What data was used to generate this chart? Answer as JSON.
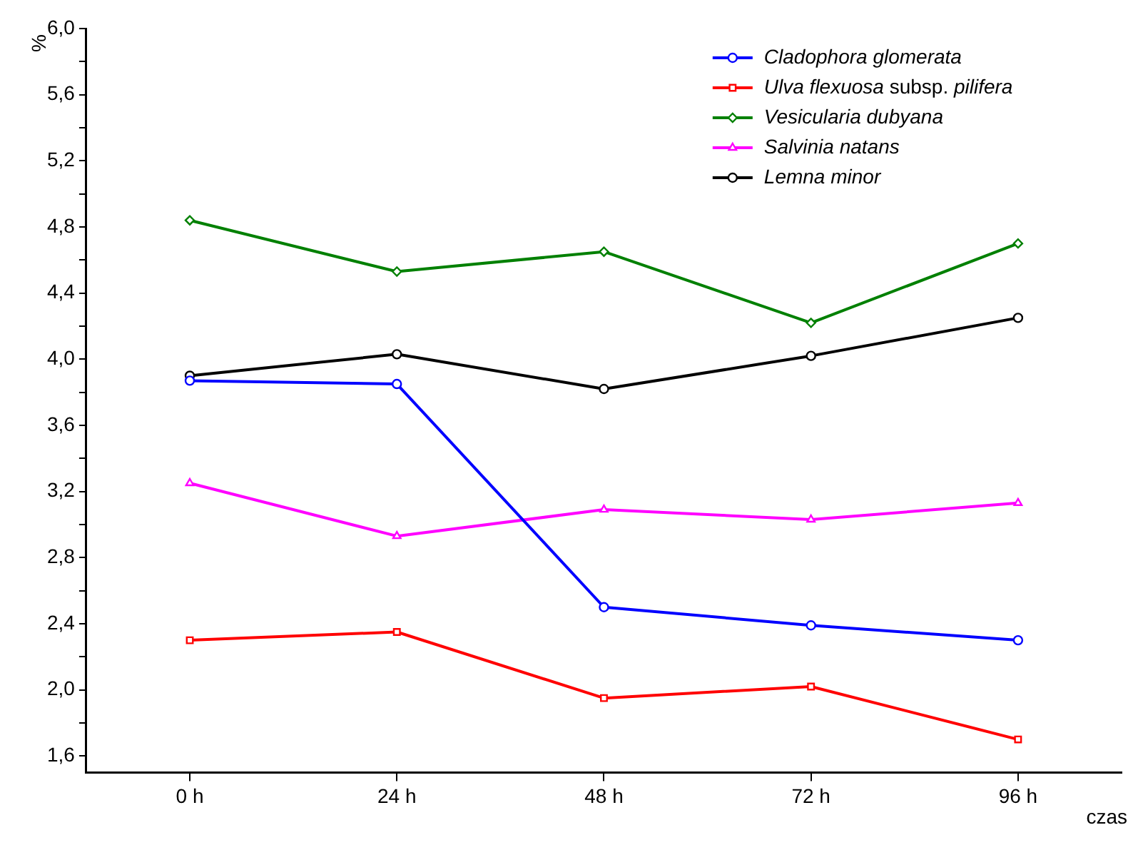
{
  "chart_data": {
    "type": "line",
    "ylabel": "%",
    "xlabel": "czas",
    "categories": [
      "0 h",
      "24 h",
      "48 h",
      "72 h",
      "96 h"
    ],
    "ylim": [
      1.5,
      6.0
    ],
    "yticks": [
      {
        "value": 1.6,
        "label": "1,6"
      },
      {
        "value": 1.8,
        "label": null
      },
      {
        "value": 2.0,
        "label": "2,0"
      },
      {
        "value": 2.2,
        "label": null
      },
      {
        "value": 2.4,
        "label": "2,4"
      },
      {
        "value": 2.6,
        "label": null
      },
      {
        "value": 2.8,
        "label": "2,8"
      },
      {
        "value": 3.0,
        "label": null
      },
      {
        "value": 3.2,
        "label": "3,2"
      },
      {
        "value": 3.4,
        "label": null
      },
      {
        "value": 3.6,
        "label": "3,6"
      },
      {
        "value": 3.8,
        "label": null
      },
      {
        "value": 4.0,
        "label": "4,0"
      },
      {
        "value": 4.2,
        "label": null
      },
      {
        "value": 4.4,
        "label": "4,4"
      },
      {
        "value": 4.6,
        "label": null
      },
      {
        "value": 4.8,
        "label": "4,8"
      },
      {
        "value": 5.0,
        "label": null
      },
      {
        "value": 5.2,
        "label": "5,2"
      },
      {
        "value": 5.4,
        "label": null
      },
      {
        "value": 5.6,
        "label": "5,6"
      },
      {
        "value": 5.8,
        "label": null
      },
      {
        "value": 6.0,
        "label": "6,0"
      }
    ],
    "grid": false,
    "legend": "top right",
    "line_style": "solid",
    "series": [
      {
        "name": "Cladophora glomerata",
        "color": "#0000ff",
        "marker": "circle",
        "values": [
          3.87,
          3.85,
          2.5,
          2.39,
          2.3
        ]
      },
      {
        "name": "Ulva flexuosa subsp. pilifera",
        "color": "#ff0000",
        "marker": "square",
        "values": [
          2.3,
          2.35,
          1.95,
          2.02,
          1.7
        ]
      },
      {
        "name": "Vesicularia dubyana",
        "color": "#008000",
        "marker": "diamond",
        "values": [
          4.84,
          4.53,
          4.65,
          4.22,
          4.7
        ]
      },
      {
        "name": "Salvinia natans",
        "color": "#ff00ff",
        "marker": "triangle",
        "values": [
          3.25,
          2.93,
          3.09,
          3.03,
          3.13
        ]
      },
      {
        "name": "Lemna minor",
        "color": "#000000",
        "marker": "circle",
        "values": [
          3.9,
          4.03,
          3.82,
          4.02,
          4.25
        ]
      }
    ]
  }
}
